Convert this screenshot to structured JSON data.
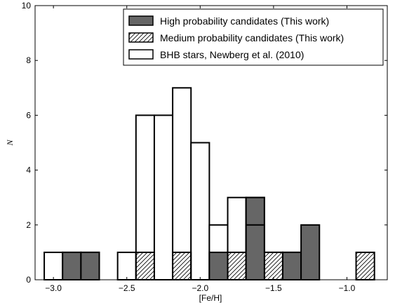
{
  "chart_data": {
    "type": "bar",
    "title": "",
    "xlabel": "[Fe/H]",
    "ylabel": "N",
    "xlim": [
      -3.125,
      -0.725
    ],
    "ylim": [
      0,
      10
    ],
    "bin_width": 0.125,
    "xticks": [
      -3.0,
      -2.5,
      -2.0,
      -1.5,
      -1.0
    ],
    "xtick_labels": [
      "−3.0",
      "−2.5",
      "−2.0",
      "−1.5",
      "−1.0"
    ],
    "yticks": [
      0,
      2,
      4,
      6,
      8,
      10
    ],
    "ytick_labels": [
      "0",
      "2",
      "4",
      "6",
      "8",
      "10"
    ],
    "legend_position": "top-right",
    "series": [
      {
        "name": "BHB stars, Newberg et al. (2010)",
        "style": "open",
        "color": "#ffffff",
        "bins": [
          {
            "x": -3.0,
            "y": 1
          },
          {
            "x": -2.875,
            "y": 1
          },
          {
            "x": -2.75,
            "y": 1
          },
          {
            "x": -2.5,
            "y": 1
          },
          {
            "x": -2.375,
            "y": 6
          },
          {
            "x": -2.25,
            "y": 6
          },
          {
            "x": -2.125,
            "y": 7
          },
          {
            "x": -2.0,
            "y": 5
          },
          {
            "x": -1.875,
            "y": 2
          },
          {
            "x": -1.75,
            "y": 3
          },
          {
            "x": -1.625,
            "y": 3
          },
          {
            "x": -1.5,
            "y": 1
          },
          {
            "x": -1.375,
            "y": 1
          }
        ]
      },
      {
        "name": "Medium probability candidates (This work)",
        "style": "hatched",
        "color": "#ffffff",
        "bins": [
          {
            "x": -2.375,
            "y": 1
          },
          {
            "x": -2.125,
            "y": 1
          },
          {
            "x": -1.75,
            "y": 1
          },
          {
            "x": -1.5,
            "y": 1
          },
          {
            "x": -0.875,
            "y": 1
          }
        ]
      },
      {
        "name": "High probability candidates (This work)",
        "style": "filled",
        "color": "#666666",
        "bins": [
          {
            "x": -2.875,
            "y": 1
          },
          {
            "x": -2.75,
            "y": 1
          },
          {
            "x": -1.875,
            "y": 1
          },
          {
            "x": -1.625,
            "y": 3
          },
          {
            "x": -1.625,
            "y": 2
          },
          {
            "x": -1.375,
            "y": 1
          },
          {
            "x": -1.25,
            "y": 2
          }
        ]
      }
    ],
    "legend_order": [
      "High probability candidates (This work)",
      "Medium probability candidates (This work)",
      "BHB stars, Newberg et al. (2010)"
    ]
  }
}
